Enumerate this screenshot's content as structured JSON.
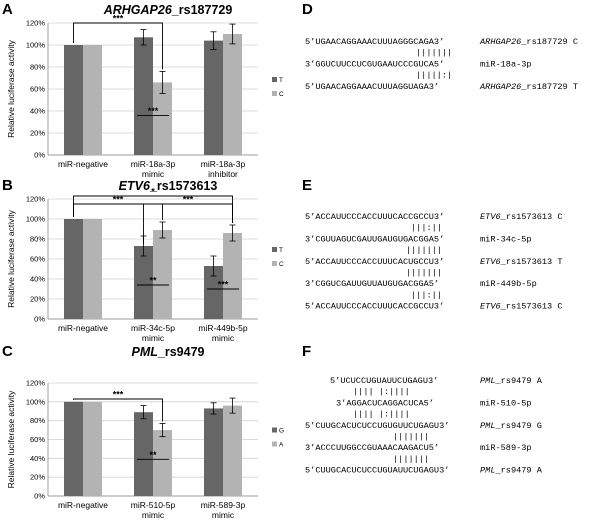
{
  "panels": [
    {
      "letter": "A"
    },
    {
      "letter": "B"
    },
    {
      "letter": "C"
    },
    {
      "letter": "D"
    },
    {
      "letter": "E"
    },
    {
      "letter": "F"
    }
  ],
  "colors": {
    "dark": "#666666",
    "light": "#b3b3b3"
  },
  "chart_data": [
    {
      "type": "bar",
      "panel": "A",
      "title_gene": "ARHGAP26",
      "title_snp": "_rs187729",
      "ylabel": "Relative luciferase activity",
      "ylim": [
        0,
        1.2
      ],
      "yticks": [
        "0%",
        "20%",
        "40%",
        "60%",
        "80%",
        "100%",
        "120%"
      ],
      "categories": [
        [
          "miR-negative"
        ],
        [
          "miR-18a-3p",
          "mimic"
        ],
        [
          "miR-18a-3p",
          "inhibitor"
        ]
      ],
      "series": [
        {
          "name": "T",
          "color": "#666666",
          "values": [
            1.0,
            1.07,
            1.04
          ],
          "errors": [
            0,
            0.07,
            0.08
          ]
        },
        {
          "name": "C",
          "color": "#b3b3b3",
          "values": [
            1.0,
            0.66,
            1.1
          ],
          "errors": [
            0,
            0.1,
            0.09
          ]
        }
      ],
      "annotations": [
        "***",
        "***"
      ]
    },
    {
      "type": "bar",
      "panel": "B",
      "title_gene": "ETV6",
      "title_snp": "_rs1573613",
      "ylabel": "Relative luciferase activity",
      "ylim": [
        0,
        1.2
      ],
      "yticks": [
        "0%",
        "20%",
        "40%",
        "60%",
        "80%",
        "100%",
        "120%"
      ],
      "categories": [
        [
          "miR-negative"
        ],
        [
          "miR-34c-5p",
          "mimic"
        ],
        [
          "miR-449b-5p",
          "mimic"
        ]
      ],
      "series": [
        {
          "name": "T",
          "color": "#666666",
          "values": [
            1.0,
            0.73,
            0.53
          ],
          "errors": [
            0,
            0.1,
            0.1
          ]
        },
        {
          "name": "C",
          "color": "#b3b3b3",
          "values": [
            1.0,
            0.89,
            0.86
          ],
          "errors": [
            0,
            0.08,
            0.08
          ]
        }
      ],
      "annotations": [
        "***",
        "*",
        "***",
        "**",
        "***"
      ]
    },
    {
      "type": "bar",
      "panel": "C",
      "title_gene": "PML",
      "title_snp": "_rs9479",
      "ylabel": "Relative luciferase activity",
      "ylim": [
        0,
        1.2
      ],
      "yticks": [
        "0%",
        "20%",
        "40%",
        "60%",
        "80%",
        "100%",
        "120%"
      ],
      "categories": [
        [
          "miR-negative"
        ],
        [
          "miR-510-5p",
          "mimic"
        ],
        [
          "miR-589-3p",
          "mimic"
        ]
      ],
      "series": [
        {
          "name": "G",
          "color": "#666666",
          "values": [
            1.0,
            0.89,
            0.93
          ],
          "errors": [
            0,
            0.07,
            0.06
          ]
        },
        {
          "name": "A",
          "color": "#b3b3b3",
          "values": [
            1.0,
            0.7,
            0.96
          ],
          "errors": [
            0,
            0.07,
            0.08
          ]
        }
      ],
      "annotations": [
        "***",
        "**"
      ]
    }
  ],
  "alignments": {
    "D": {
      "lines": [
        {
          "seq": "5’UGAACAGGAAACUUUAGGGCAGA3’",
          "label_gene": "ARHGAP26",
          "label_rest": "_rs187729 C"
        },
        {
          "seq": "|||||||",
          "label_gene": "",
          "label_rest": ""
        },
        {
          "seq": "3’GGUCUUCCUCGUGAAUCCCGUCA5’",
          "label_gene": "",
          "label_rest": "miR-18a-3p"
        },
        {
          "seq": "|||||:|",
          "label_gene": "",
          "label_rest": ""
        },
        {
          "seq": "5’UGAACAGGAAACUUUAGGUAGA3’",
          "label_gene": "ARHGAP26",
          "label_rest": "_rs187729 T"
        }
      ]
    },
    "E": {
      "lines": [
        {
          "seq": "5’ACCAUUCCCACCUUUCACCGCCU3’",
          "label_gene": "ETV6",
          "label_rest": "_rs1573613 C"
        },
        {
          "seq": "|||:||",
          "label_gene": "",
          "label_rest": ""
        },
        {
          "seq": "3’CGUUAGUCGAUUGAUGUGACGGA5’",
          "label_gene": "",
          "label_rest": "miR-34c-5p"
        },
        {
          "seq": "|||||||",
          "label_gene": "",
          "label_rest": ""
        },
        {
          "seq": "5’ACCAUUCCCACCUUUCACUGCCU3’",
          "label_gene": "ETV6",
          "label_rest": "_rs1573613 T"
        },
        {
          "seq": "|||||||",
          "label_gene": "",
          "label_rest": ""
        },
        {
          "seq": "3’CGGUCGAUUGUUAUGUGACGGA5’",
          "label_gene": "",
          "label_rest": "miR-449b-5p"
        },
        {
          "seq": "|||:||",
          "label_gene": "",
          "label_rest": ""
        },
        {
          "seq": "5’ACCAUUCCCACCUUUCACCGCCU3’",
          "label_gene": "ETV6",
          "label_rest": "_rs1573613 C"
        }
      ]
    },
    "F": {
      "lines": [
        {
          "seq": "5’UCUCCUGUAUUCUGAGU3’",
          "label_gene": "PML",
          "label_rest": "_rs9479 A"
        },
        {
          "seq": "||||  |:||||",
          "label_gene": "",
          "label_rest": ""
        },
        {
          "seq": "3’AGGACUCAGGACUCA5’",
          "label_gene": "",
          "label_rest": "miR-510-5p"
        },
        {
          "seq": "||||  |:||||",
          "label_gene": "",
          "label_rest": ""
        },
        {
          "seq": "5’CUUGCACUCUCCUGUGUUCUGAGU3’",
          "label_gene": "PML",
          "label_rest": "_rs9479 G"
        },
        {
          "seq": "|||||||",
          "label_gene": "",
          "label_rest": ""
        },
        {
          "seq": "3’ACCCUUGGCCGUAAACAAGACU5’",
          "label_gene": "",
          "label_rest": "miR-589-3p"
        },
        {
          "seq": "|||||||",
          "label_gene": "",
          "label_rest": ""
        },
        {
          "seq": "5’CUUGCACUCUCCUGUAUUCUGAGU3’",
          "label_gene": "PML",
          "label_rest": "_rs9479 A"
        }
      ]
    }
  }
}
